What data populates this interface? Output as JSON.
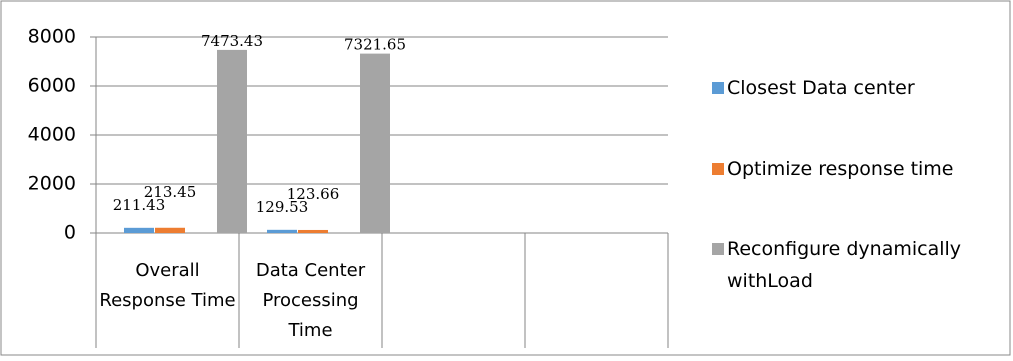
{
  "chart_data": {
    "type": "bar",
    "categories": [
      "Overall Response Time",
      "Data Center Processing Time",
      null,
      null
    ],
    "series": [
      {
        "name": "Closest Data center",
        "color": "#5b9bd5",
        "values": [
          211.43,
          129.53,
          null,
          null
        ]
      },
      {
        "name": "Optimize response time",
        "color": "#ed7d31",
        "values": [
          213.45,
          123.66,
          null,
          null
        ]
      },
      {
        "name": "Reconfigure dynamically withLoad",
        "color": "#a5a5a5",
        "values": [
          7473.43,
          7321.65,
          null,
          null
        ]
      }
    ],
    "ylim": [
      0,
      8000
    ],
    "yticks": [
      0,
      2000,
      4000,
      6000,
      8000
    ],
    "grid": true,
    "legend": "right"
  }
}
